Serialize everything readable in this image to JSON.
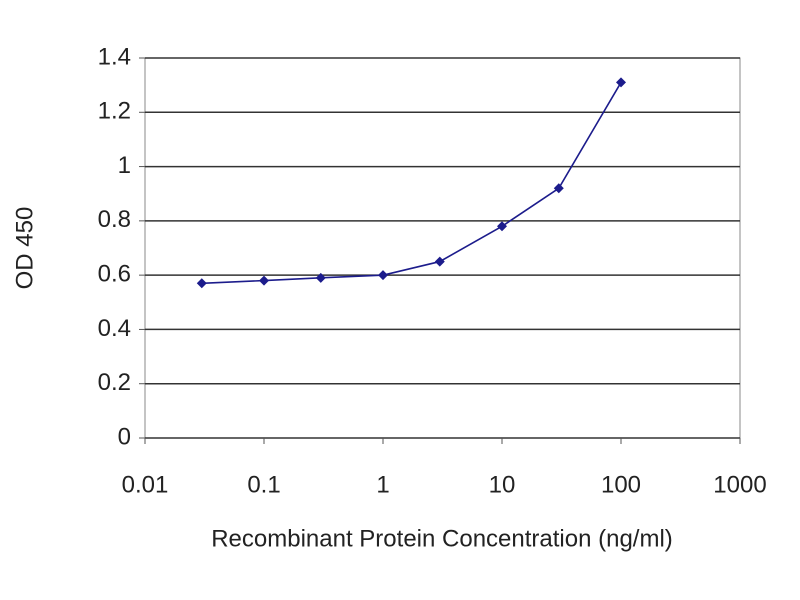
{
  "chart_data": {
    "type": "line",
    "x_label": "Recombinant Protein Concentration (ng/ml)",
    "y_label": "OD 450",
    "x": [
      0.03,
      0.1,
      0.3,
      1,
      3,
      10,
      30,
      100
    ],
    "series": [
      {
        "color": "#1c1c8c",
        "values": [
          0.57,
          0.58,
          0.59,
          0.6,
          0.65,
          0.78,
          0.92,
          1.31
        ]
      }
    ],
    "xlim": [
      0.01,
      1000
    ],
    "xticks": [
      0.01,
      0.1,
      1,
      10,
      100,
      1000
    ],
    "xscale": "log",
    "ylim": [
      0,
      1.4
    ],
    "yticks": [
      0,
      0.2,
      0.4,
      0.6,
      0.8,
      1,
      1.2,
      1.4
    ],
    "grid": true
  }
}
